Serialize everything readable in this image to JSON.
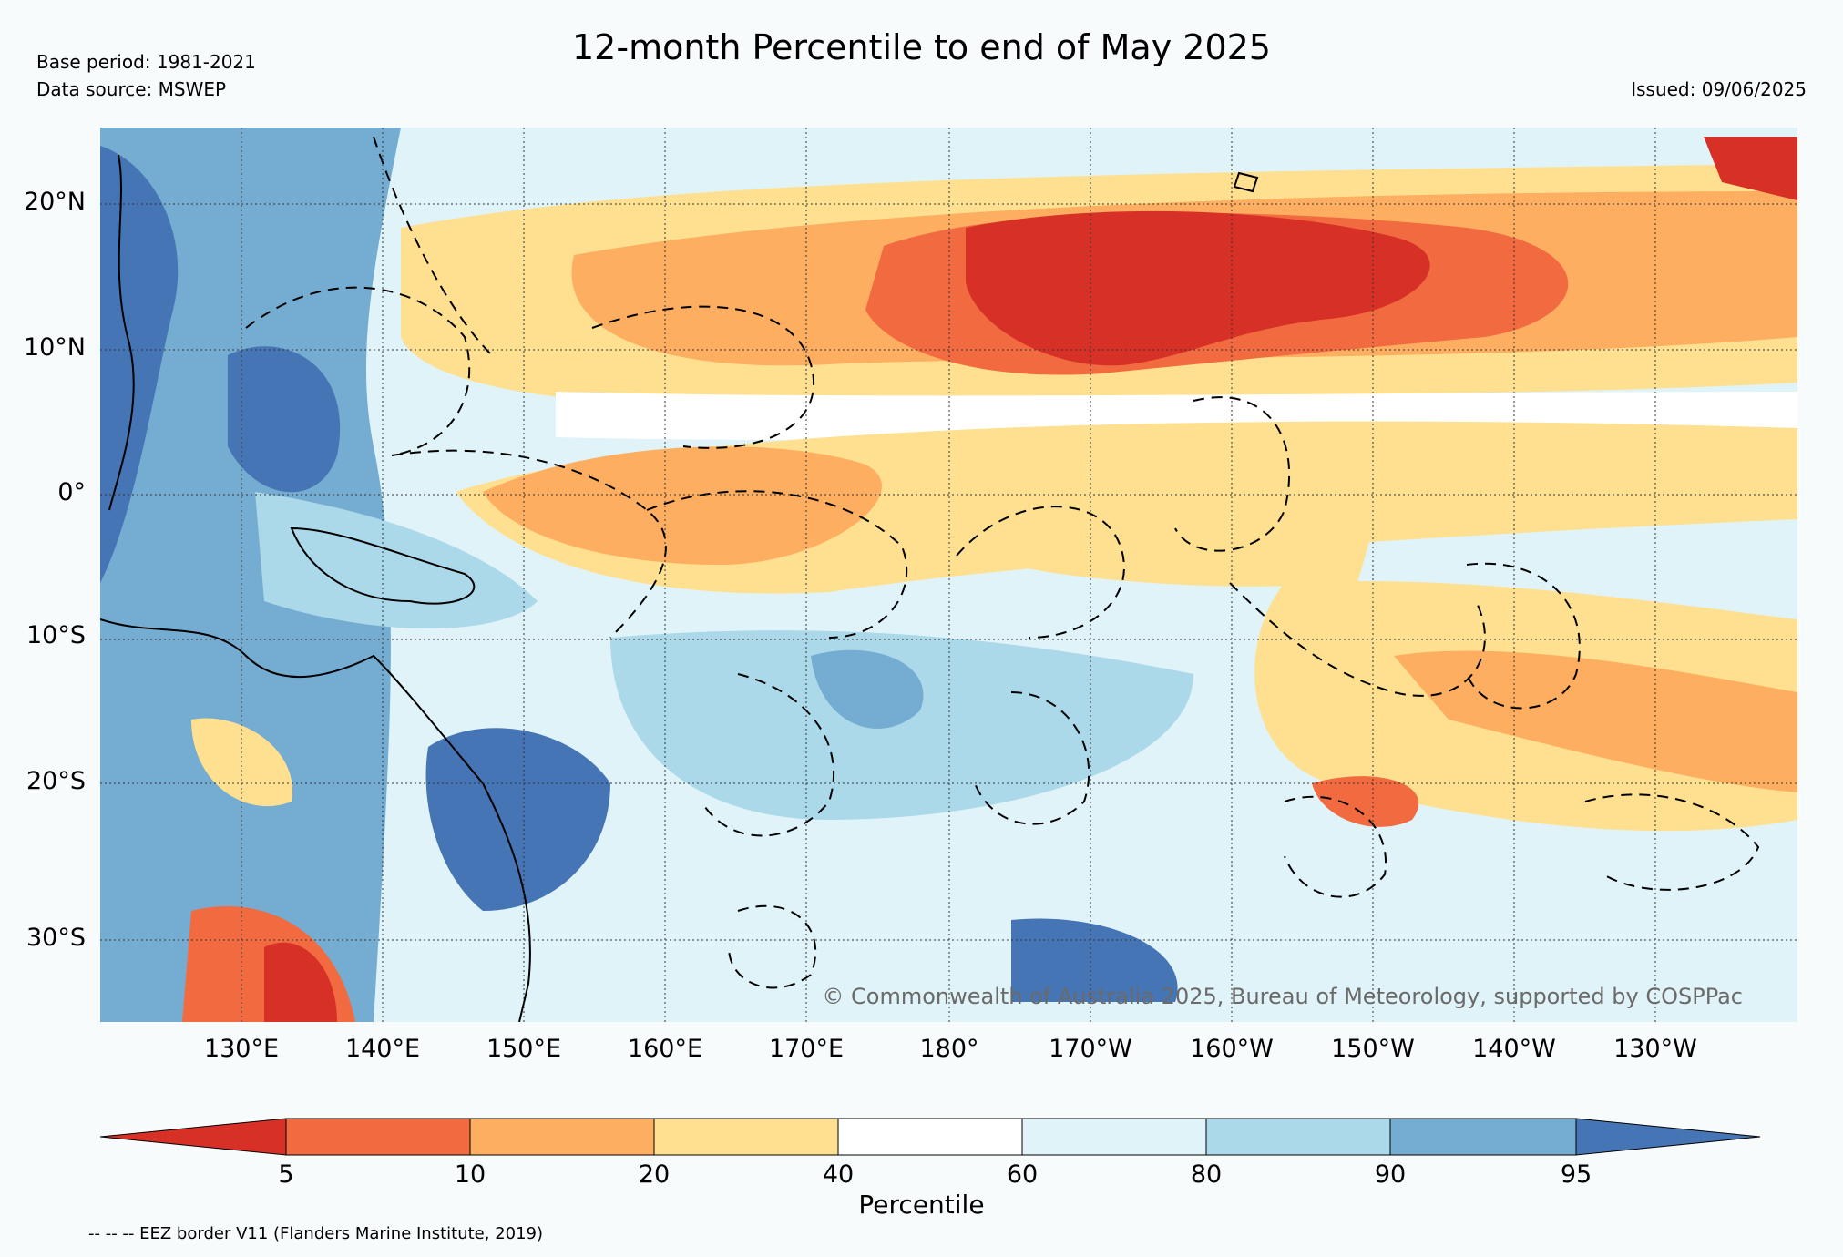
{
  "title": "12-month Percentile to end of May 2025",
  "base_period": "Base period: 1981-2021",
  "data_source": "Data source: MSWEP",
  "issued": "Issued: 09/06/2025",
  "copyright": "© Commonwealth of Australia 2025, Bureau of Meteorology, supported by COSPPac",
  "eez_note": "-- -- -- EEZ border V11 (Flanders Marine Institute, 2019)",
  "latitude_labels": [
    "20°N",
    "10°N",
    "0°",
    "10°S",
    "20°S",
    "30°S"
  ],
  "longitude_labels": [
    "130°E",
    "140°E",
    "150°E",
    "160°E",
    "170°E",
    "180°",
    "170°W",
    "160°W",
    "150°W",
    "140°W",
    "130°W"
  ],
  "colorbar": {
    "label": "Percentile",
    "ticks": [
      "5",
      "10",
      "20",
      "40",
      "60",
      "80",
      "90",
      "95"
    ],
    "bins": [
      {
        "range": "<5",
        "color": "#d73027"
      },
      {
        "range": "5-10",
        "color": "#f26a40"
      },
      {
        "range": "10-20",
        "color": "#fdae61"
      },
      {
        "range": "20-40",
        "color": "#fee090"
      },
      {
        "range": "40-60",
        "color": "#ffffff"
      },
      {
        "range": "60-80",
        "color": "#e0f3f8"
      },
      {
        "range": "80-90",
        "color": "#abd9e9"
      },
      {
        "range": "90-95",
        "color": "#74add1"
      },
      {
        "range": ">95",
        "color": "#4575b4"
      }
    ]
  }
}
